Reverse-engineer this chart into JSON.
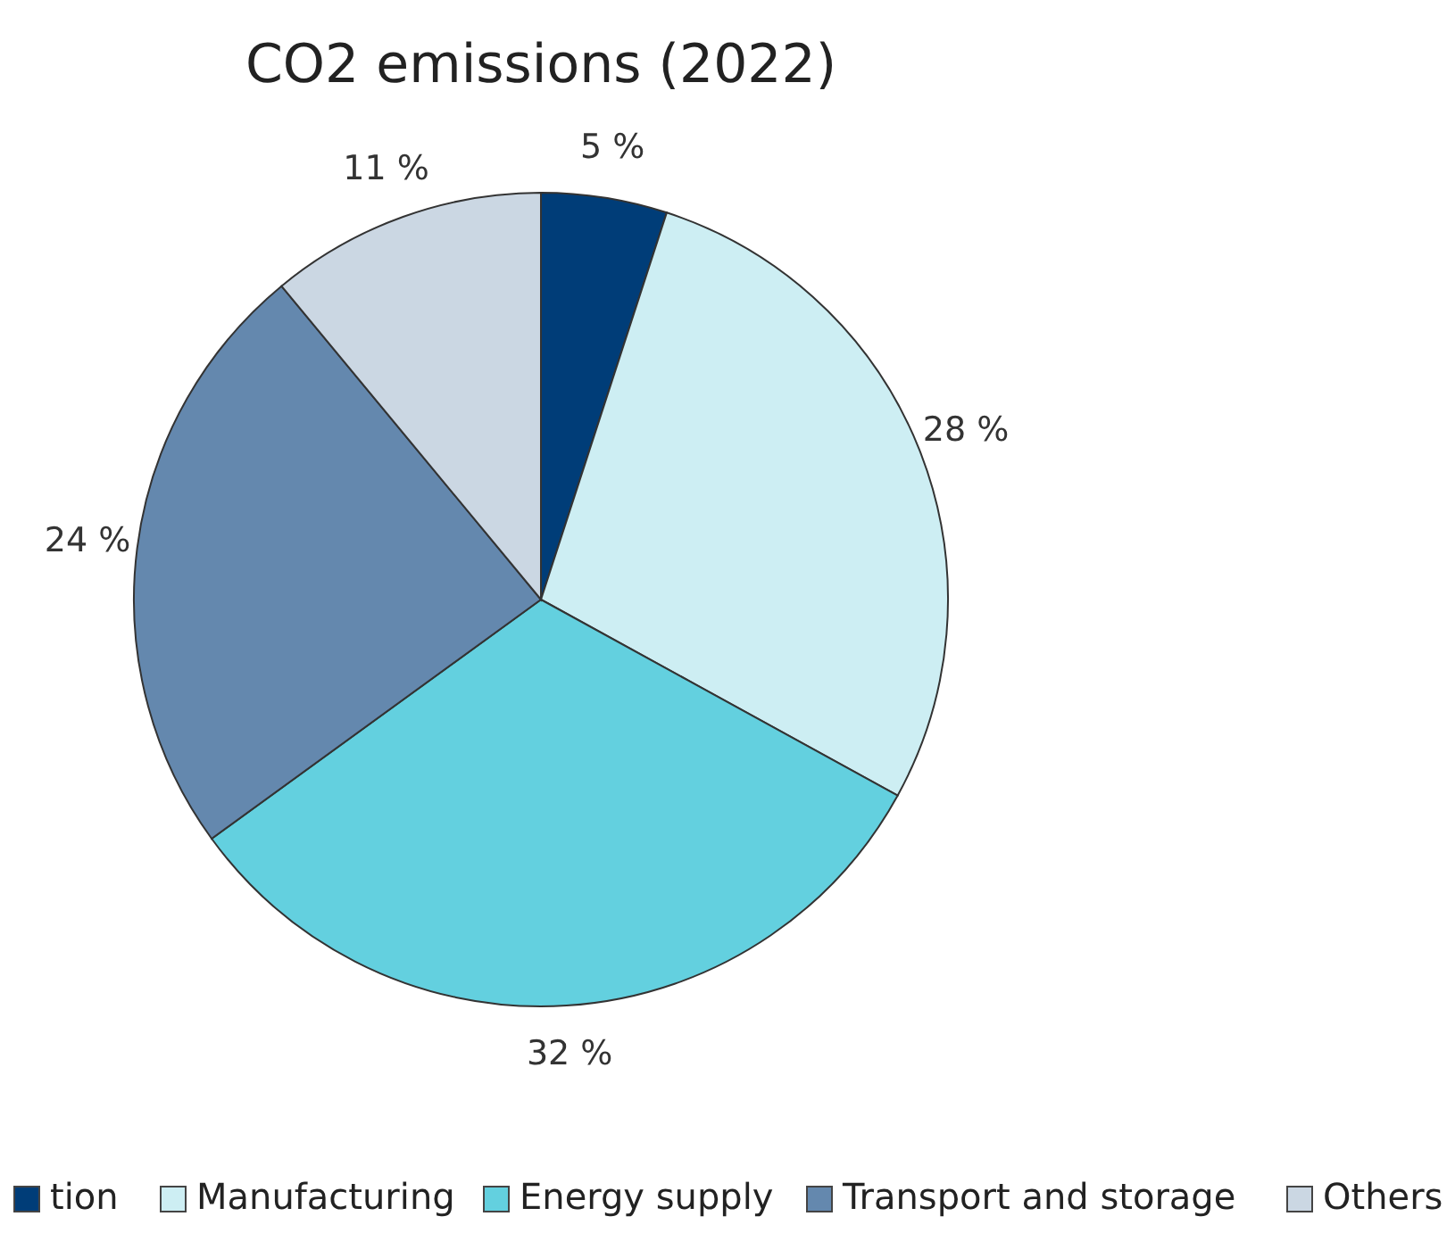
{
  "chart_data": {
    "type": "pie",
    "title": "CO2 emissions (2022)",
    "categories": [
      "tion",
      "Manufacturing",
      "Energy supply",
      "Transport and storage",
      "Others"
    ],
    "values": [
      5,
      28,
      32,
      24,
      11
    ],
    "colors": [
      "#003d78",
      "#cdeef3",
      "#63d0df",
      "#6488ae",
      "#cbd7e3"
    ],
    "value_labels": [
      "5 %",
      "28 %",
      "32 %",
      "24 %",
      "11 %"
    ],
    "legend": "bottom"
  }
}
